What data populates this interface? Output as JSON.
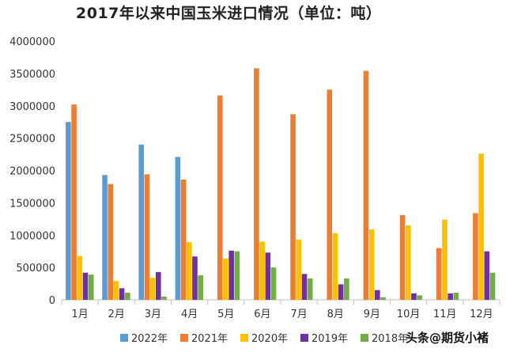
{
  "watermark": "头条@期货小褚",
  "chart_data": {
    "type": "bar",
    "title": "2017年以来中国玉米进口情况（单位：吨）",
    "xlabel": "",
    "ylabel": "",
    "categories": [
      "1月",
      "2月",
      "3月",
      "4月",
      "5月",
      "6月",
      "7月",
      "8月",
      "9月",
      "10月",
      "11月",
      "12月"
    ],
    "ylim": [
      0,
      4000000
    ],
    "yticks": [
      0,
      500000,
      1000000,
      1500000,
      2000000,
      2500000,
      3000000,
      3500000,
      4000000
    ],
    "ytick_labels": [
      "0",
      "500000",
      "1000000",
      "1500000",
      "2000000",
      "2500000",
      "3000000",
      "3500000",
      "4000000"
    ],
    "grid": false,
    "legend_position": "bottom",
    "series": [
      {
        "name": "2022年",
        "color": "#5b9bd5",
        "values": [
          2750000,
          1930000,
          2400000,
          2210000,
          null,
          null,
          null,
          null,
          null,
          null,
          null,
          null
        ]
      },
      {
        "name": "2021年",
        "color": "#ed7d31",
        "values": [
          3020000,
          1790000,
          1940000,
          1860000,
          3160000,
          3580000,
          2870000,
          3250000,
          3540000,
          1310000,
          800000,
          1340000
        ]
      },
      {
        "name": "2020年",
        "color": "#ffc000",
        "values": [
          680000,
          290000,
          340000,
          890000,
          640000,
          900000,
          930000,
          1030000,
          1090000,
          1150000,
          1240000,
          2260000
        ]
      },
      {
        "name": "2019年",
        "color": "#7030a0",
        "values": [
          420000,
          180000,
          430000,
          670000,
          760000,
          730000,
          400000,
          240000,
          150000,
          100000,
          100000,
          750000
        ]
      },
      {
        "name": "2018年",
        "color": "#70ad47",
        "values": [
          390000,
          110000,
          50000,
          380000,
          750000,
          500000,
          330000,
          330000,
          40000,
          70000,
          110000,
          420000
        ]
      }
    ]
  }
}
